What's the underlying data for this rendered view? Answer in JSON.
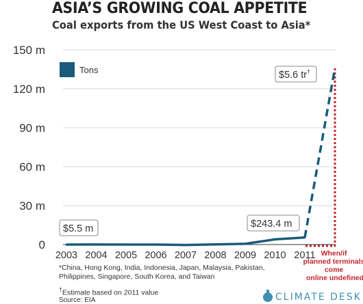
{
  "title": "ASIA’S GROWING COAL APPETITE",
  "subtitle": "Coal exports from the US West Coast to Asia*",
  "chart_data": {
    "type": "line",
    "title": "ASIA’S GROWING COAL APPETITE",
    "subtitle": "Coal exports from the US West Coast to Asia*",
    "x_categories": [
      "2003",
      "2004",
      "2005",
      "2006",
      "2007",
      "2008",
      "2009",
      "2010",
      "2011"
    ],
    "future_label": "When/if planned terminals come online",
    "y_ticks": [
      {
        "value": 0,
        "label": "0"
      },
      {
        "value": 30,
        "label": "30 m"
      },
      {
        "value": 60,
        "label": "60 m"
      },
      {
        "value": 90,
        "label": "90 m"
      },
      {
        "value": 120,
        "label": "120 m"
      },
      {
        "value": 150,
        "label": "150 m"
      }
    ],
    "ylim": [
      0,
      150
    ],
    "grid": true,
    "legend_position": "top-left",
    "series": [
      {
        "name": "Tons",
        "color": "#1b5a7a",
        "values": [
          0.0,
          0.05,
          0.01,
          0.01,
          -0.3,
          0.1,
          0.6,
          4.0,
          5.5
        ],
        "projection": 136
      }
    ],
    "annotations": {
      "start": "$5.5 m",
      "end": "$243.4 m",
      "future": "$5.6 tr",
      "future_mark": "†"
    }
  },
  "footnotes": {
    "note1": "*China, Hong Kong, India, Indonesia, Japan, Malaysia, Pakistan, Philippines, Singapore, South Korea, and Taiwan",
    "note2_mark": "†",
    "note2": "Estimate based on 2011 value",
    "source": "Source: EIA"
  },
  "brand": {
    "name": "CLIMATE DESK",
    "icon": "drop-icon"
  },
  "colors": {
    "series": "#1b5a7a",
    "accent": "#c1272d",
    "grid": "#d9d9d9",
    "brand": "#3f8fb5"
  }
}
